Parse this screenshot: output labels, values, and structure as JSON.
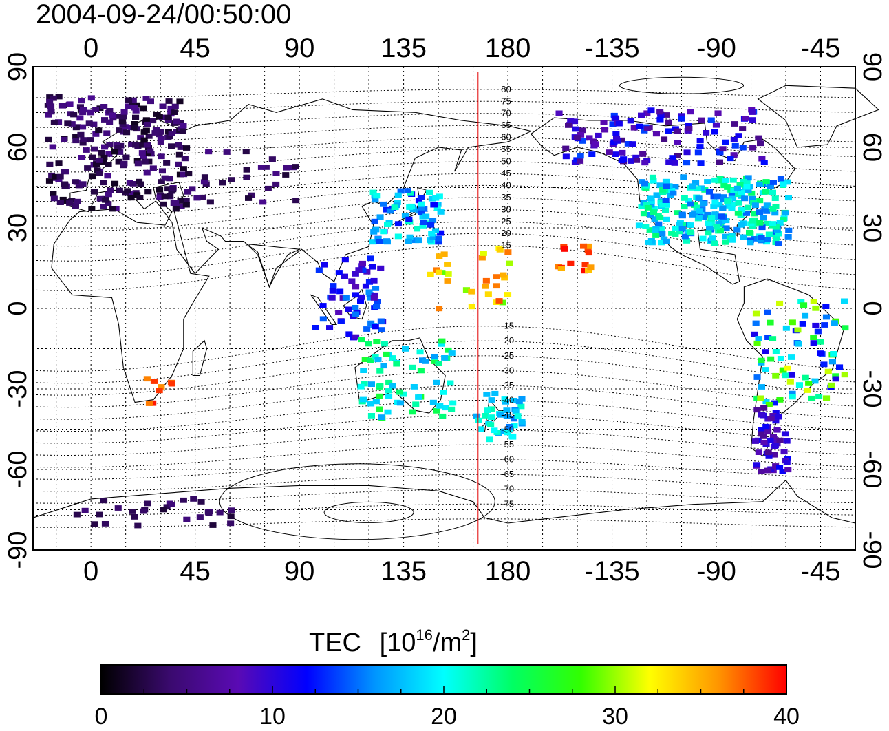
{
  "header": {
    "timestamp": "2004-09-24/00:50:00"
  },
  "map": {
    "projection": "equirectangular",
    "lon_range": [
      -25,
      330
    ],
    "lat_range": [
      -90,
      90
    ],
    "top_axis_ticks": [
      "0",
      "45",
      "90",
      "135",
      "180",
      "-135",
      "-90",
      "-45"
    ],
    "bottom_axis_ticks": [
      "0",
      "45",
      "90",
      "135",
      "180",
      "-135",
      "-90",
      "-45"
    ],
    "left_axis_ticks": [
      "90",
      "60",
      "30",
      "0",
      "-30",
      "-60",
      "-90"
    ],
    "right_axis_ticks": [
      "90",
      "60",
      "30",
      "0",
      "-30",
      "-60",
      "-90"
    ],
    "grid": "dotted, every 15 degrees",
    "meridian_marker_lon": 167,
    "meridian_marker_color": "#e00000",
    "contour_labels": [
      "80",
      "75",
      "70",
      "65",
      "60",
      "55",
      "50",
      "45",
      "40",
      "35",
      "30",
      "25",
      "20",
      "15",
      "-15",
      "-20",
      "-25",
      "-30",
      "-35",
      "-40",
      "-45",
      "-50",
      "-55",
      "-60",
      "-65",
      "-70",
      "-75"
    ]
  },
  "colorbar": {
    "title": "TEC",
    "unit_base": "10",
    "unit_exp": "16",
    "unit_mid": "/m",
    "unit_exp2": "2",
    "tick_labels": [
      "0",
      "10",
      "20",
      "30",
      "40"
    ],
    "min": 0,
    "max": 40,
    "colormap": [
      "#000000",
      "#3a0a6e",
      "#5a0ab4",
      "#0000ff",
      "#0096ff",
      "#00ffff",
      "#00ff64",
      "#32ff00",
      "#ffff00",
      "#ff9600",
      "#ff0000"
    ]
  }
}
